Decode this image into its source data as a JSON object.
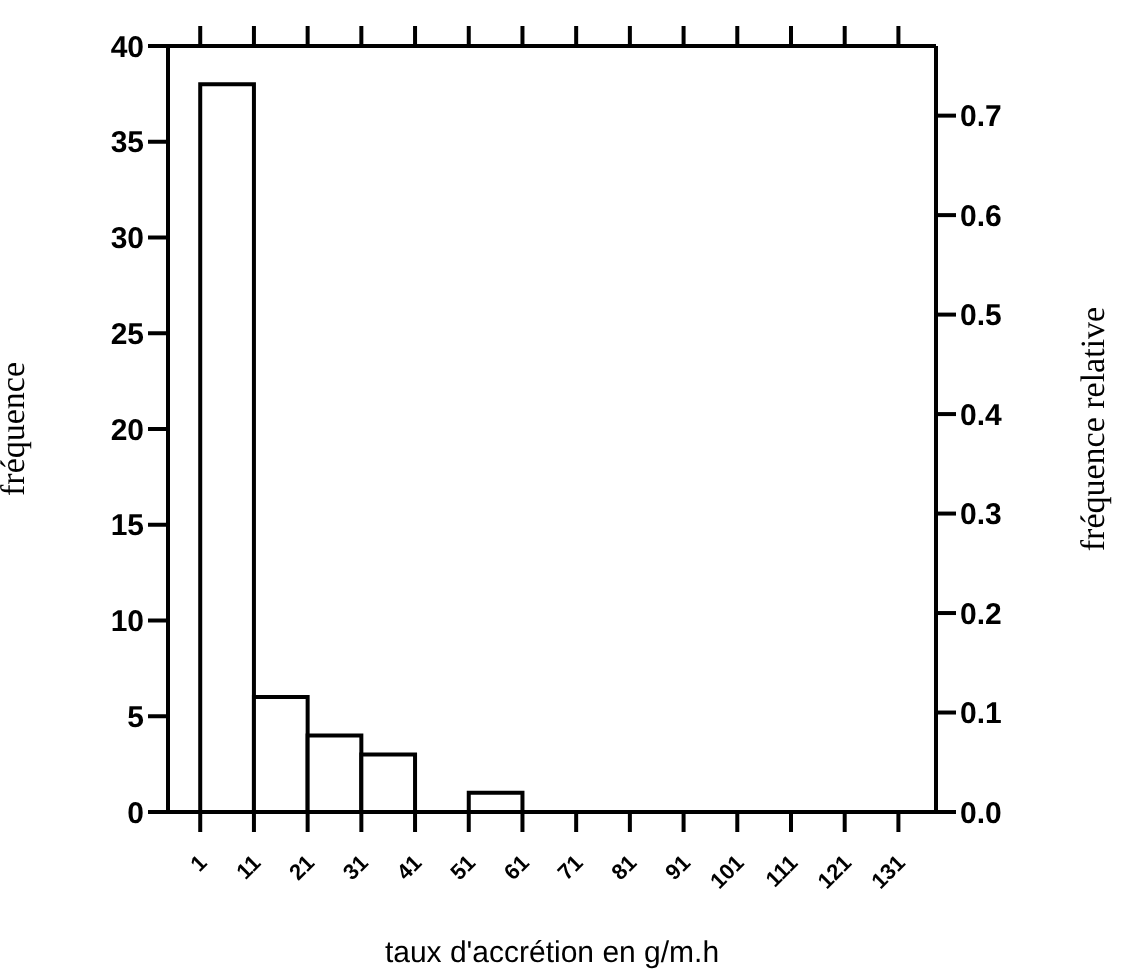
{
  "chart_data": {
    "type": "histogram",
    "xlabel": "taux d'accrétion en g/m.h",
    "ylabel": "fréquence",
    "y2label": "fréquence relative",
    "bins": [
      1,
      11,
      21,
      31,
      41,
      51,
      61,
      71,
      81,
      91,
      101,
      111,
      121,
      131
    ],
    "values": [
      38,
      6,
      4,
      3,
      0,
      1,
      0,
      0,
      0,
      0,
      0,
      0,
      0
    ],
    "color": "#ffffff",
    "xlim": [
      -5,
      138
    ],
    "xticks": [
      1,
      11,
      21,
      31,
      41,
      51,
      61,
      71,
      81,
      91,
      101,
      111,
      121,
      131
    ],
    "ylim": [
      0,
      40
    ],
    "yticks": [
      0,
      5,
      10,
      15,
      20,
      25,
      30,
      35,
      40
    ],
    "y2lim": [
      0,
      0.77
    ],
    "y2ticks": [
      {
        "value": 0,
        "label": "0.0"
      },
      {
        "value": 0.1,
        "label": "0.1"
      },
      {
        "value": 0.2,
        "label": "0.2"
      },
      {
        "value": 0.3,
        "label": "0.3"
      },
      {
        "value": 0.4,
        "label": "0.4"
      },
      {
        "value": 0.5,
        "label": "0.5"
      },
      {
        "value": 0.6,
        "label": "0.6"
      },
      {
        "value": 0.7,
        "label": "0.7"
      }
    ],
    "grid": false
  }
}
